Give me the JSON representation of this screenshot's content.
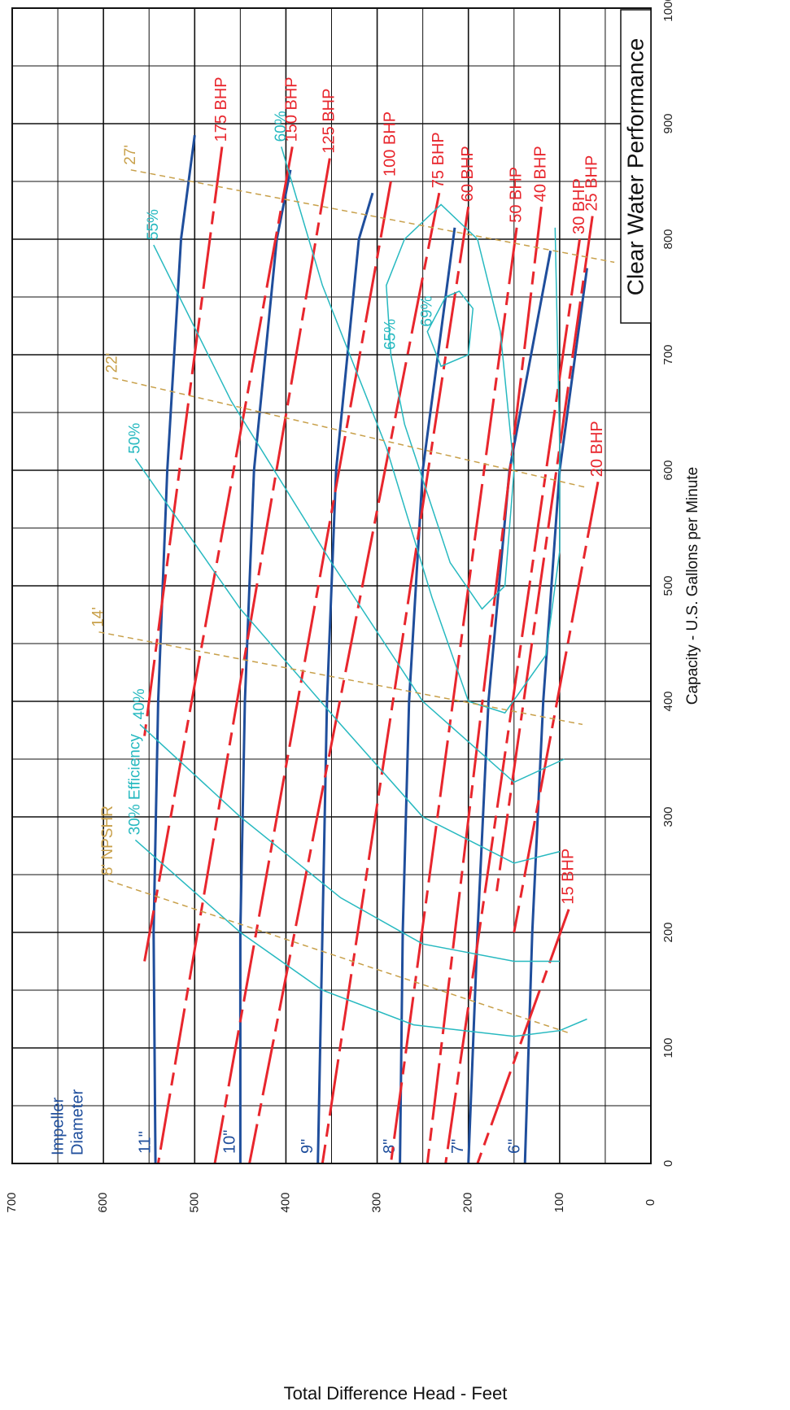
{
  "chart_data": {
    "type": "line",
    "title": "Clear Water Performance",
    "x_label": "Capacity - U.S. Gallons per Minute",
    "y_label": "Total Difference Head - Feet",
    "annotation": [
      "Impeller",
      "Diameter"
    ],
    "xlim": [
      0,
      1000
    ],
    "xticks": [
      0,
      100,
      200,
      300,
      400,
      500,
      600,
      700,
      800,
      900,
      1000
    ],
    "ylim": [
      0,
      700
    ],
    "yticks": [
      0,
      100,
      200,
      300,
      400,
      500,
      600,
      700
    ],
    "grid": true,
    "series": [
      {
        "name": "11\"",
        "kind": "impeller",
        "color": "#1f4e9c",
        "style": "solid",
        "x": [
          0,
          200,
          400,
          600,
          800,
          890
        ],
        "values": [
          543,
          545,
          540,
          530,
          515,
          500
        ]
      },
      {
        "name": "10\"",
        "kind": "impeller",
        "color": "#1f4e9c",
        "style": "solid",
        "x": [
          0,
          200,
          400,
          600,
          800,
          860
        ],
        "values": [
          450,
          450,
          445,
          435,
          410,
          395
        ]
      },
      {
        "name": "9\"",
        "kind": "impeller",
        "color": "#1f4e9c",
        "style": "solid",
        "x": [
          0,
          200,
          400,
          600,
          800,
          840
        ],
        "values": [
          365,
          360,
          355,
          345,
          320,
          305
        ]
      },
      {
        "name": "8\"",
        "kind": "impeller",
        "color": "#1f4e9c",
        "style": "solid",
        "x": [
          0,
          200,
          400,
          600,
          810
        ],
        "values": [
          275,
          272,
          265,
          250,
          215
        ]
      },
      {
        "name": "7\"",
        "kind": "impeller",
        "color": "#1f4e9c",
        "style": "solid",
        "x": [
          0,
          200,
          400,
          600,
          790
        ],
        "values": [
          200,
          190,
          178,
          155,
          110
        ]
      },
      {
        "name": "6\"",
        "kind": "impeller",
        "color": "#1f4e9c",
        "style": "solid",
        "x": [
          0,
          200,
          400,
          600,
          775
        ],
        "values": [
          138,
          130,
          118,
          100,
          70
        ]
      },
      {
        "name": "175 BHP",
        "kind": "bhp",
        "color": "#e8262d",
        "style": "dashed",
        "x": [
          880,
          370
        ],
        "values": [
          470,
          555
        ]
      },
      {
        "name": "150 BHP",
        "kind": "bhp",
        "color": "#e8262d",
        "style": "dashed",
        "x": [
          880,
          175
        ],
        "values": [
          393,
          555
        ]
      },
      {
        "name": "125 BHP",
        "kind": "bhp",
        "color": "#e8262d",
        "style": "dashed",
        "x": [
          870,
          0
        ],
        "values": [
          352,
          540
        ]
      },
      {
        "name": "100 BHP",
        "kind": "bhp",
        "color": "#e8262d",
        "style": "dashed",
        "x": [
          850,
          0
        ],
        "values": [
          285,
          478
        ]
      },
      {
        "name": "75 BHP",
        "kind": "bhp",
        "color": "#e8262d",
        "style": "dashed",
        "x": [
          840,
          0
        ],
        "values": [
          232,
          440
        ]
      },
      {
        "name": "60 BHP",
        "kind": "bhp",
        "color": "#e8262d",
        "style": "dashed",
        "x": [
          828,
          0
        ],
        "values": [
          200,
          360
        ]
      },
      {
        "name": "50 BHP",
        "kind": "bhp",
        "color": "#e8262d",
        "style": "dashed",
        "x": [
          810,
          0
        ],
        "values": [
          147,
          285
        ]
      },
      {
        "name": "40 BHP",
        "kind": "bhp",
        "color": "#e8262d",
        "style": "dashed",
        "x": [
          828,
          0
        ],
        "values": [
          120,
          245
        ]
      },
      {
        "name": "30 BHP",
        "kind": "bhp",
        "color": "#e8262d",
        "style": "dashed",
        "x": [
          800,
          0
        ],
        "values": [
          78,
          225
        ]
      },
      {
        "name": "25 BHP",
        "kind": "bhp",
        "color": "#e8262d",
        "style": "dashed",
        "x": [
          820,
          230
        ],
        "values": [
          64,
          170
        ]
      },
      {
        "name": "20 BHP",
        "kind": "bhp",
        "color": "#e8262d",
        "style": "dashed",
        "x": [
          590,
          200
        ],
        "values": [
          58,
          150
        ]
      },
      {
        "name": "15 BHP",
        "kind": "bhp",
        "color": "#e8262d",
        "style": "dashed",
        "x": [
          220,
          0
        ],
        "values": [
          90,
          190
        ]
      },
      {
        "name": "30% Efficiency",
        "kind": "efficiency",
        "color": "#27b9c0",
        "style": "solid",
        "x": [
          280,
          200,
          150,
          120,
          110,
          115,
          125
        ],
        "values": [
          565,
          450,
          360,
          260,
          150,
          100,
          70
        ]
      },
      {
        "name": "40%",
        "kind": "efficiency",
        "color": "#27b9c0",
        "style": "solid",
        "x": [
          380,
          300,
          230,
          190,
          175,
          175
        ],
        "values": [
          560,
          450,
          340,
          250,
          150,
          100
        ]
      },
      {
        "name": "50%",
        "kind": "efficiency",
        "color": "#27b9c0",
        "style": "solid",
        "x": [
          610,
          480,
          380,
          300,
          260,
          270
        ],
        "values": [
          565,
          450,
          340,
          250,
          150,
          100
        ]
      },
      {
        "name": "55%",
        "kind": "efficiency",
        "color": "#27b9c0",
        "style": "solid",
        "x": [
          795,
          660,
          520,
          400,
          330,
          350
        ],
        "values": [
          545,
          460,
          350,
          250,
          150,
          95
        ]
      },
      {
        "name": "60%",
        "kind": "efficiency",
        "color": "#27b9c0",
        "style": "solid",
        "x": [
          880,
          760,
          620,
          490,
          400,
          390,
          440,
          530,
          620,
          810
        ],
        "values": [
          405,
          360,
          290,
          240,
          200,
          160,
          115,
          100,
          100,
          105
        ]
      },
      {
        "name": "65%",
        "kind": "efficiency",
        "color": "#27b9c0",
        "style": "solid",
        "closed": true,
        "x": [
          700,
          640,
          520,
          480,
          500,
          600,
          720,
          800,
          830,
          800,
          760
        ],
        "values": [
          285,
          270,
          220,
          185,
          160,
          150,
          165,
          190,
          230,
          270,
          290
        ]
      },
      {
        "name": "69%",
        "kind": "efficiency",
        "color": "#27b9c0",
        "style": "solid",
        "closed": true,
        "x": [
          720,
          690,
          700,
          740,
          755,
          750
        ],
        "values": [
          245,
          230,
          200,
          195,
          210,
          225
        ]
      },
      {
        "name": "8' NPSHR",
        "kind": "npsh",
        "color": "#c8a04a",
        "style": "dashed",
        "x": [
          245,
          113
        ],
        "values": [
          595,
          90
        ]
      },
      {
        "name": "14'",
        "kind": "npsh",
        "color": "#c8a04a",
        "style": "dashed",
        "x": [
          460,
          380
        ],
        "values": [
          605,
          75
        ]
      },
      {
        "name": "22'",
        "kind": "npsh",
        "color": "#c8a04a",
        "style": "dashed",
        "x": [
          680,
          585
        ],
        "values": [
          590,
          70
        ]
      },
      {
        "name": "27'",
        "kind": "npsh",
        "color": "#c8a04a",
        "style": "dashed",
        "x": [
          860,
          780
        ],
        "values": [
          570,
          40
        ]
      }
    ]
  }
}
